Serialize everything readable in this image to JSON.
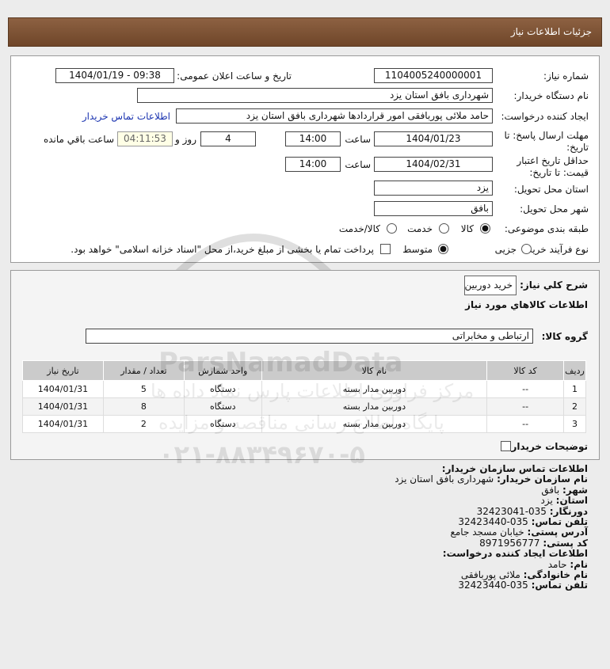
{
  "header": {
    "title": "جزئیات اطلاعات نیاز"
  },
  "form": {
    "need_number_label": "شماره نیاز:",
    "need_number": "1104005240000001",
    "announce_label": "تاریخ و ساعت اعلان عمومی:",
    "announce_value": "1404/01/19 - 09:38",
    "buyer_label": "نام دستگاه خریدار:",
    "buyer_value": "شهرداری بافق استان یزد",
    "creator_label": "ایجاد کننده درخواست:",
    "creator_value": "حامد ملائی پوربافقی امور قراردادها شهرداری بافق استان یزد",
    "contact_link": "اطلاعات تماس خریدار",
    "deadline_label": "مهلت ارسال پاسخ: تا تاریخ:",
    "deadline_date": "1404/01/23",
    "time_label": "ساعت",
    "deadline_time": "14:00",
    "days": "4",
    "days_label": "روز و",
    "remaining": "04:11:53",
    "remaining_label": "ساعت باقي مانده",
    "validity_label": "حداقل تاریخ اعتبار قیمت: تا تاریخ:",
    "validity_date": "1404/02/31",
    "validity_time": "14:00",
    "province_label": "استان محل تحویل:",
    "province": "یزد",
    "city_label": "شهر محل تحویل:",
    "city": "بافق",
    "category_label": "طبقه بندی موضوعی:",
    "category_options": [
      {
        "label": "کالا",
        "selected": true
      },
      {
        "label": "خدمت",
        "selected": false
      },
      {
        "label": "کالا/خدمت",
        "selected": false
      }
    ],
    "process_label": "نوع فرآیند خرید :",
    "process_options": [
      {
        "label": "جزیی",
        "selected": false
      },
      {
        "label": "متوسط",
        "selected": true
      }
    ],
    "payment_note": "پرداخت تمام یا بخشی از مبلغ خرید،از محل \"اسناد خزانه اسلامی\" خواهد بود.",
    "payment_checked": false
  },
  "goods": {
    "desc_label": "شرح کلي نياز:",
    "desc_value": "خرید دوربین",
    "section_title": "اطلاعات کالاهاي مورد نياز",
    "group_label": "گروه کالا:",
    "group_value": "ارتباطی و مخابراتی",
    "columns": [
      "ردیف",
      "کد کالا",
      "نام کالا",
      "واحد شمارش",
      "تعداد / مقدار",
      "تاریخ نیاز"
    ],
    "rows": [
      [
        "1",
        "--",
        "دوربین مدار بسته",
        "دستگاه",
        "5",
        "1404/01/31"
      ],
      [
        "2",
        "--",
        "دوربین مدار بسته",
        "دستگاه",
        "8",
        "1404/01/31"
      ],
      [
        "3",
        "--",
        "دوربین مدار بسته",
        "دستگاه",
        "2",
        "1404/01/31"
      ]
    ],
    "notes_label": "توضیحات خریدار:"
  },
  "contact": {
    "title": "اطلاعات تماس سازمان خریدار:",
    "org_label": "نام سازمان خریدار:",
    "org": "شهرداری بافق استان یزد",
    "city_label": "شهر:",
    "city": "بافق",
    "province_label": "استان:",
    "province": "یزد",
    "fax_label": "دورنگار:",
    "fax": "035-32423041",
    "phone_label": "تلفن تماس:",
    "phone": "035-32423440",
    "address_label": "آدرس پستی:",
    "address": "خیابان مسجد جامع",
    "postal_label": "کد پستی:",
    "postal": "8971956777",
    "creator_title": "اطلاعات ایجاد کننده درخواست:",
    "name_label": "نام:",
    "name": "حامد",
    "family_label": "نام خانوادگی:",
    "family": "ملائی پوربافقی",
    "creator_phone_label": "تلفن تماس:",
    "creator_phone": "035-32423440"
  },
  "watermark": {
    "text1": "ParsNamadData",
    "text2": "مرکز فراوری اطلاعات پارس نماد داده ها",
    "text3": "پایگاه اطلاع رسانی مناقصه و مزایده",
    "text4": "۰۲۱-۸۸۳۴۹۶۷۰-۵"
  }
}
